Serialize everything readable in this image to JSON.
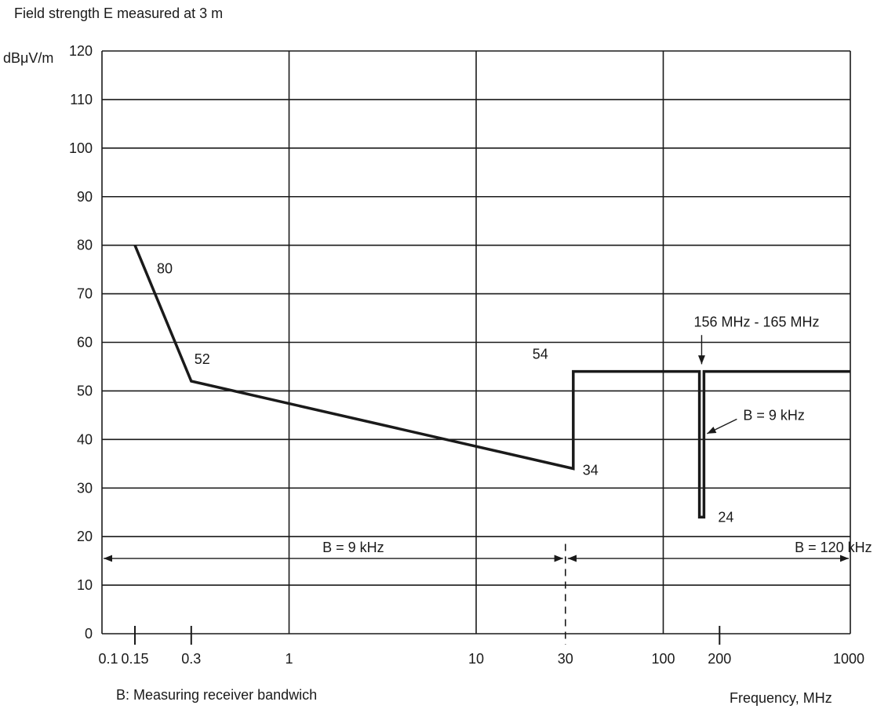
{
  "chart_data": {
    "type": "line",
    "title": "Field strength E measured at 3 m",
    "ylabel": "dBμV/m",
    "xlabel": "Frequency, MHz",
    "x_scale": "log",
    "xlim": [
      0.1,
      1000
    ],
    "ylim": [
      0,
      120
    ],
    "grid": true,
    "y_ticks": [
      0,
      10,
      20,
      30,
      40,
      50,
      60,
      70,
      80,
      90,
      100,
      110,
      120
    ],
    "x_tick_labels": [
      "0.1",
      "0.15",
      "0.3",
      "1",
      "10",
      "30",
      "100",
      "200",
      "1000"
    ],
    "x_tick_values": [
      0.1,
      0.15,
      0.3,
      1,
      10,
      30,
      100,
      200,
      1000
    ],
    "series": [
      {
        "x": [
          0.15,
          0.3,
          30,
          30,
          156,
          156,
          165,
          165,
          1000
        ],
        "y": [
          80,
          52,
          34,
          54,
          54,
          24,
          24,
          54,
          54
        ]
      }
    ],
    "point_labels": [
      {
        "text": "80",
        "x": 0.15,
        "y": 80
      },
      {
        "text": "52",
        "x": 0.3,
        "y": 52
      },
      {
        "text": "54",
        "x": 30,
        "y": 54
      },
      {
        "text": "34",
        "x": 30,
        "y": 34
      },
      {
        "text": "24",
        "x": 165,
        "y": 24
      }
    ],
    "annotations": {
      "band_label": "156 MHz - 165 MHz",
      "notch_bandwidth": "B = 9 kHz",
      "low_bandwidth": "B = 9 kHz",
      "high_bandwidth": "B = 120 kHz",
      "bandwidth_split_mhz": 30
    },
    "footnote": "B: Measuring receiver bandwich"
  }
}
